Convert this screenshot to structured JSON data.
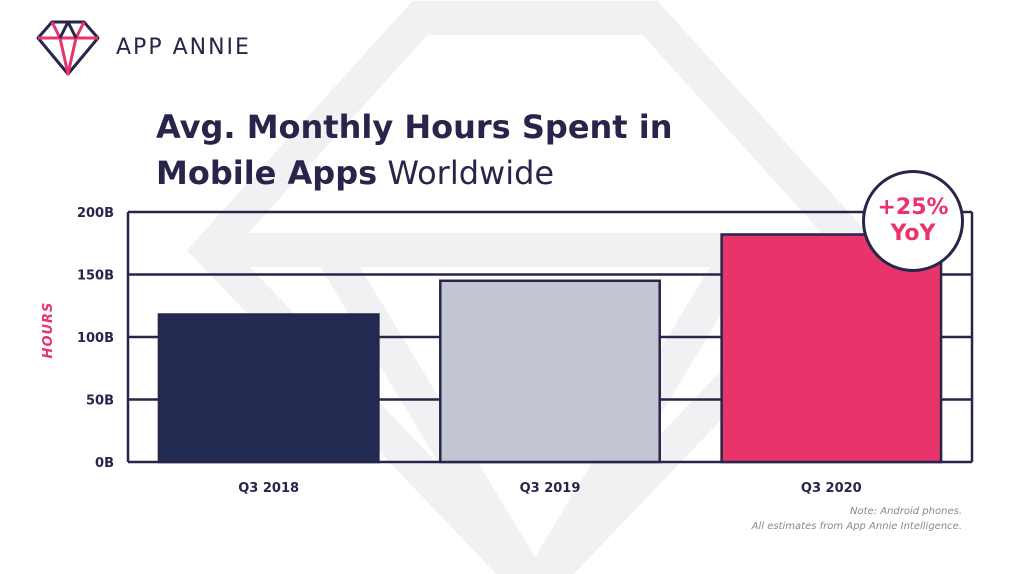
{
  "brand": {
    "name": "APP ANNIE",
    "logo_icon": "diamond-icon"
  },
  "title": {
    "line1": "Avg. Monthly Hours Spent in",
    "line2_bold": "Mobile Apps",
    "line2_light": "Worldwide"
  },
  "badge": {
    "line1": "+25%",
    "line2": "YoY"
  },
  "note": {
    "line1": "Note: Android phones.",
    "line2": "All estimates from App Annie Intelligence."
  },
  "colors": {
    "navy": "#232b52",
    "silver": "#c2c6d2",
    "pink": "#e8336b",
    "text": "#27254a",
    "accent": "#e8336b"
  },
  "chart_data": {
    "type": "bar",
    "title": "Avg. Monthly Hours Spent in Mobile Apps Worldwide",
    "ylabel": "HOURS",
    "xlabel": "",
    "categories": [
      "Q3 2018",
      "Q3 2019",
      "Q3 2020"
    ],
    "values": [
      118,
      145,
      182
    ],
    "bar_colors": [
      "#232b52",
      "#c2c6d2",
      "#e8336b"
    ],
    "ylim": [
      0,
      200
    ],
    "yticks": [
      0,
      50,
      100,
      150,
      200
    ],
    "ytick_labels": [
      "0B",
      "50B",
      "100B",
      "150B",
      "200B"
    ],
    "grid": true,
    "annotation": "+25% YoY"
  }
}
